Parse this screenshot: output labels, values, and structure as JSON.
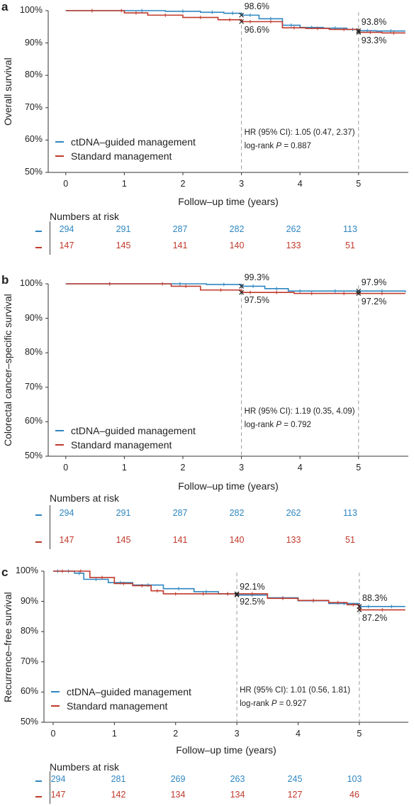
{
  "colors": {
    "ctdna": "#2e86c1",
    "standard": "#c0392b",
    "axis": "#333333",
    "ref": "#999999"
  },
  "legend": {
    "ctdna_label": "ctDNA–guided management",
    "standard_label": "Standard management"
  },
  "common": {
    "xlabel": "Follow–up time (years)",
    "risk_title": "Numbers at risk"
  },
  "chart_data": [
    {
      "letter": "a",
      "type": "line",
      "ylabel": "Overall survival",
      "xlabel": "Follow–up time (years)",
      "xlim": [
        -0.3,
        5.85
      ],
      "ylim": [
        50,
        100
      ],
      "xticks": [
        0,
        1,
        2,
        3,
        4,
        5
      ],
      "yticks": [
        50,
        60,
        70,
        80,
        90,
        100
      ],
      "ytick_labels": [
        "50%",
        "60%",
        "70%",
        "80%",
        "90%",
        "100%"
      ],
      "grid": false,
      "legend_position": "center-left",
      "reference_lines_x": [
        3,
        5
      ],
      "series": [
        {
          "name": "ctDNA–guided management",
          "color_key": "ctdna",
          "x": [
            0,
            0.9,
            1.7,
            2.3,
            2.7,
            3.0,
            3.3,
            3.7,
            4.0,
            4.4,
            4.8,
            5.0,
            5.3,
            5.8
          ],
          "y": [
            100,
            100,
            99.8,
            99.5,
            99.2,
            98.6,
            97.5,
            95.5,
            94.8,
            94.6,
            94.2,
            93.8,
            93.7,
            93.7
          ]
        },
        {
          "name": "Standard management",
          "color_key": "standard",
          "x": [
            0,
            0.9,
            1.0,
            1.4,
            2.0,
            2.6,
            3.0,
            3.3,
            3.7,
            4.1,
            4.5,
            5.0,
            5.4,
            5.8
          ],
          "y": [
            100,
            100,
            99.3,
            98.6,
            97.9,
            97.2,
            96.6,
            96.6,
            94.7,
            94.5,
            94.2,
            93.3,
            93.1,
            93.1
          ]
        }
      ],
      "point_labels": [
        {
          "text": "98.6%",
          "x": 3,
          "y": 98.6,
          "pos": "above"
        },
        {
          "text": "96.6%",
          "x": 3,
          "y": 96.6,
          "pos": "below"
        },
        {
          "text": "93.8%",
          "x": 5,
          "y": 93.8,
          "pos": "above"
        },
        {
          "text": "93.3%",
          "x": 5,
          "y": 93.3,
          "pos": "below"
        }
      ],
      "stats_hr": "HR (95% CI): 1.05 (0.47, 2.37)",
      "stats_p_prefix": "log-rank ",
      "stats_p_italic": "P",
      "stats_p_value": " = 0.887",
      "risk": {
        "ctdna": [
          "294",
          "291",
          "287",
          "282",
          "262",
          "113"
        ],
        "standard": [
          "147",
          "145",
          "141",
          "140",
          "133",
          "51"
        ]
      }
    },
    {
      "letter": "b",
      "type": "line",
      "ylabel": "Colorectal cancer–specific survival",
      "xlabel": "Follow–up time (years)",
      "xlim": [
        -0.3,
        5.85
      ],
      "ylim": [
        50,
        100
      ],
      "xticks": [
        0,
        1,
        2,
        3,
        4,
        5
      ],
      "yticks": [
        50,
        60,
        70,
        80,
        90,
        100
      ],
      "ytick_labels": [
        "50%",
        "60%",
        "70%",
        "80%",
        "90%",
        "100%"
      ],
      "grid": false,
      "legend_position": "center-left",
      "reference_lines_x": [
        3,
        5
      ],
      "series": [
        {
          "name": "ctDNA–guided management",
          "color_key": "ctdna",
          "x": [
            0,
            1.5,
            2.4,
            3.0,
            3.4,
            3.8,
            4.2,
            5.0,
            5.8
          ],
          "y": [
            100,
            100,
            99.8,
            99.3,
            98.6,
            97.9,
            97.9,
            97.9,
            97.6
          ]
        },
        {
          "name": "Standard management",
          "color_key": "standard",
          "x": [
            0,
            1.5,
            1.8,
            2.3,
            3.0,
            3.3,
            3.9,
            4.5,
            5.0,
            5.8
          ],
          "y": [
            100,
            100,
            99.3,
            98.2,
            97.5,
            97.5,
            97.2,
            97.2,
            97.2,
            97.2
          ]
        }
      ],
      "point_labels": [
        {
          "text": "99.3%",
          "x": 3,
          "y": 99.3,
          "pos": "above"
        },
        {
          "text": "97.5%",
          "x": 3,
          "y": 97.5,
          "pos": "below"
        },
        {
          "text": "97.9%",
          "x": 5,
          "y": 97.9,
          "pos": "above"
        },
        {
          "text": "97.2%",
          "x": 5,
          "y": 97.2,
          "pos": "below"
        }
      ],
      "stats_hr": "HR (95% CI): 1.19 (0.35, 4.09)",
      "stats_p_prefix": "log-rank ",
      "stats_p_italic": "P",
      "stats_p_value": " = 0.792",
      "risk": {
        "ctdna": [
          "294",
          "291",
          "287",
          "282",
          "262",
          "113"
        ],
        "standard": [
          "147",
          "145",
          "141",
          "140",
          "133",
          "51"
        ]
      }
    },
    {
      "letter": "c",
      "type": "line",
      "ylabel": "Recurrence–free survival",
      "xlabel": "Follow–up time (years)",
      "xlim": [
        -0.15,
        5.8
      ],
      "ylim": [
        50,
        100
      ],
      "xticks": [
        0,
        1,
        2,
        3,
        4,
        5
      ],
      "yticks": [
        50,
        60,
        70,
        80,
        90,
        100
      ],
      "ytick_labels": [
        "50%",
        "60%",
        "70%",
        "80%",
        "90%",
        "100%"
      ],
      "grid": false,
      "legend_position": "center-left",
      "reference_lines_x": [
        3,
        5
      ],
      "series": [
        {
          "name": "ctDNA–guided management",
          "color_key": "ctdna",
          "x": [
            0,
            0.15,
            0.35,
            0.5,
            0.9,
            1.3,
            1.8,
            2.3,
            2.7,
            3.0,
            3.5,
            4.0,
            4.5,
            5.0,
            5.3,
            5.75
          ],
          "y": [
            100,
            100,
            99.3,
            97.3,
            96.2,
            95.4,
            94.2,
            93.2,
            92.5,
            92.1,
            91.2,
            90.2,
            89.3,
            88.3,
            88.3,
            88.3
          ]
        },
        {
          "name": "Standard management",
          "color_key": "standard",
          "x": [
            0,
            0.3,
            0.6,
            1.0,
            1.3,
            1.6,
            1.8,
            2.2,
            2.7,
            3.0,
            3.5,
            4.0,
            4.5,
            4.8,
            5.0,
            5.75
          ],
          "y": [
            100,
            100,
            97.9,
            95.9,
            95.2,
            93.5,
            92.5,
            92.5,
            92.5,
            92.5,
            91.0,
            90.3,
            89.6,
            88.9,
            87.2,
            87.2
          ]
        }
      ],
      "point_labels": [
        {
          "text": "92.1%",
          "x": 3,
          "y": 92.1,
          "pos": "above"
        },
        {
          "text": "92.5%",
          "x": 3,
          "y": 92.5,
          "pos": "below"
        },
        {
          "text": "88.3%",
          "x": 5,
          "y": 88.3,
          "pos": "above"
        },
        {
          "text": "87.2%",
          "x": 5,
          "y": 87.2,
          "pos": "below"
        }
      ],
      "stats_hr": "HR (95% CI): 1.01 (0.56, 1.81)",
      "stats_p_prefix": "log-rank ",
      "stats_p_italic": "P",
      "stats_p_value": " = 0.927",
      "risk": {
        "ctdna": [
          "294",
          "281",
          "269",
          "263",
          "245",
          "103"
        ],
        "standard": [
          "147",
          "142",
          "134",
          "134",
          "127",
          "46"
        ]
      }
    }
  ]
}
